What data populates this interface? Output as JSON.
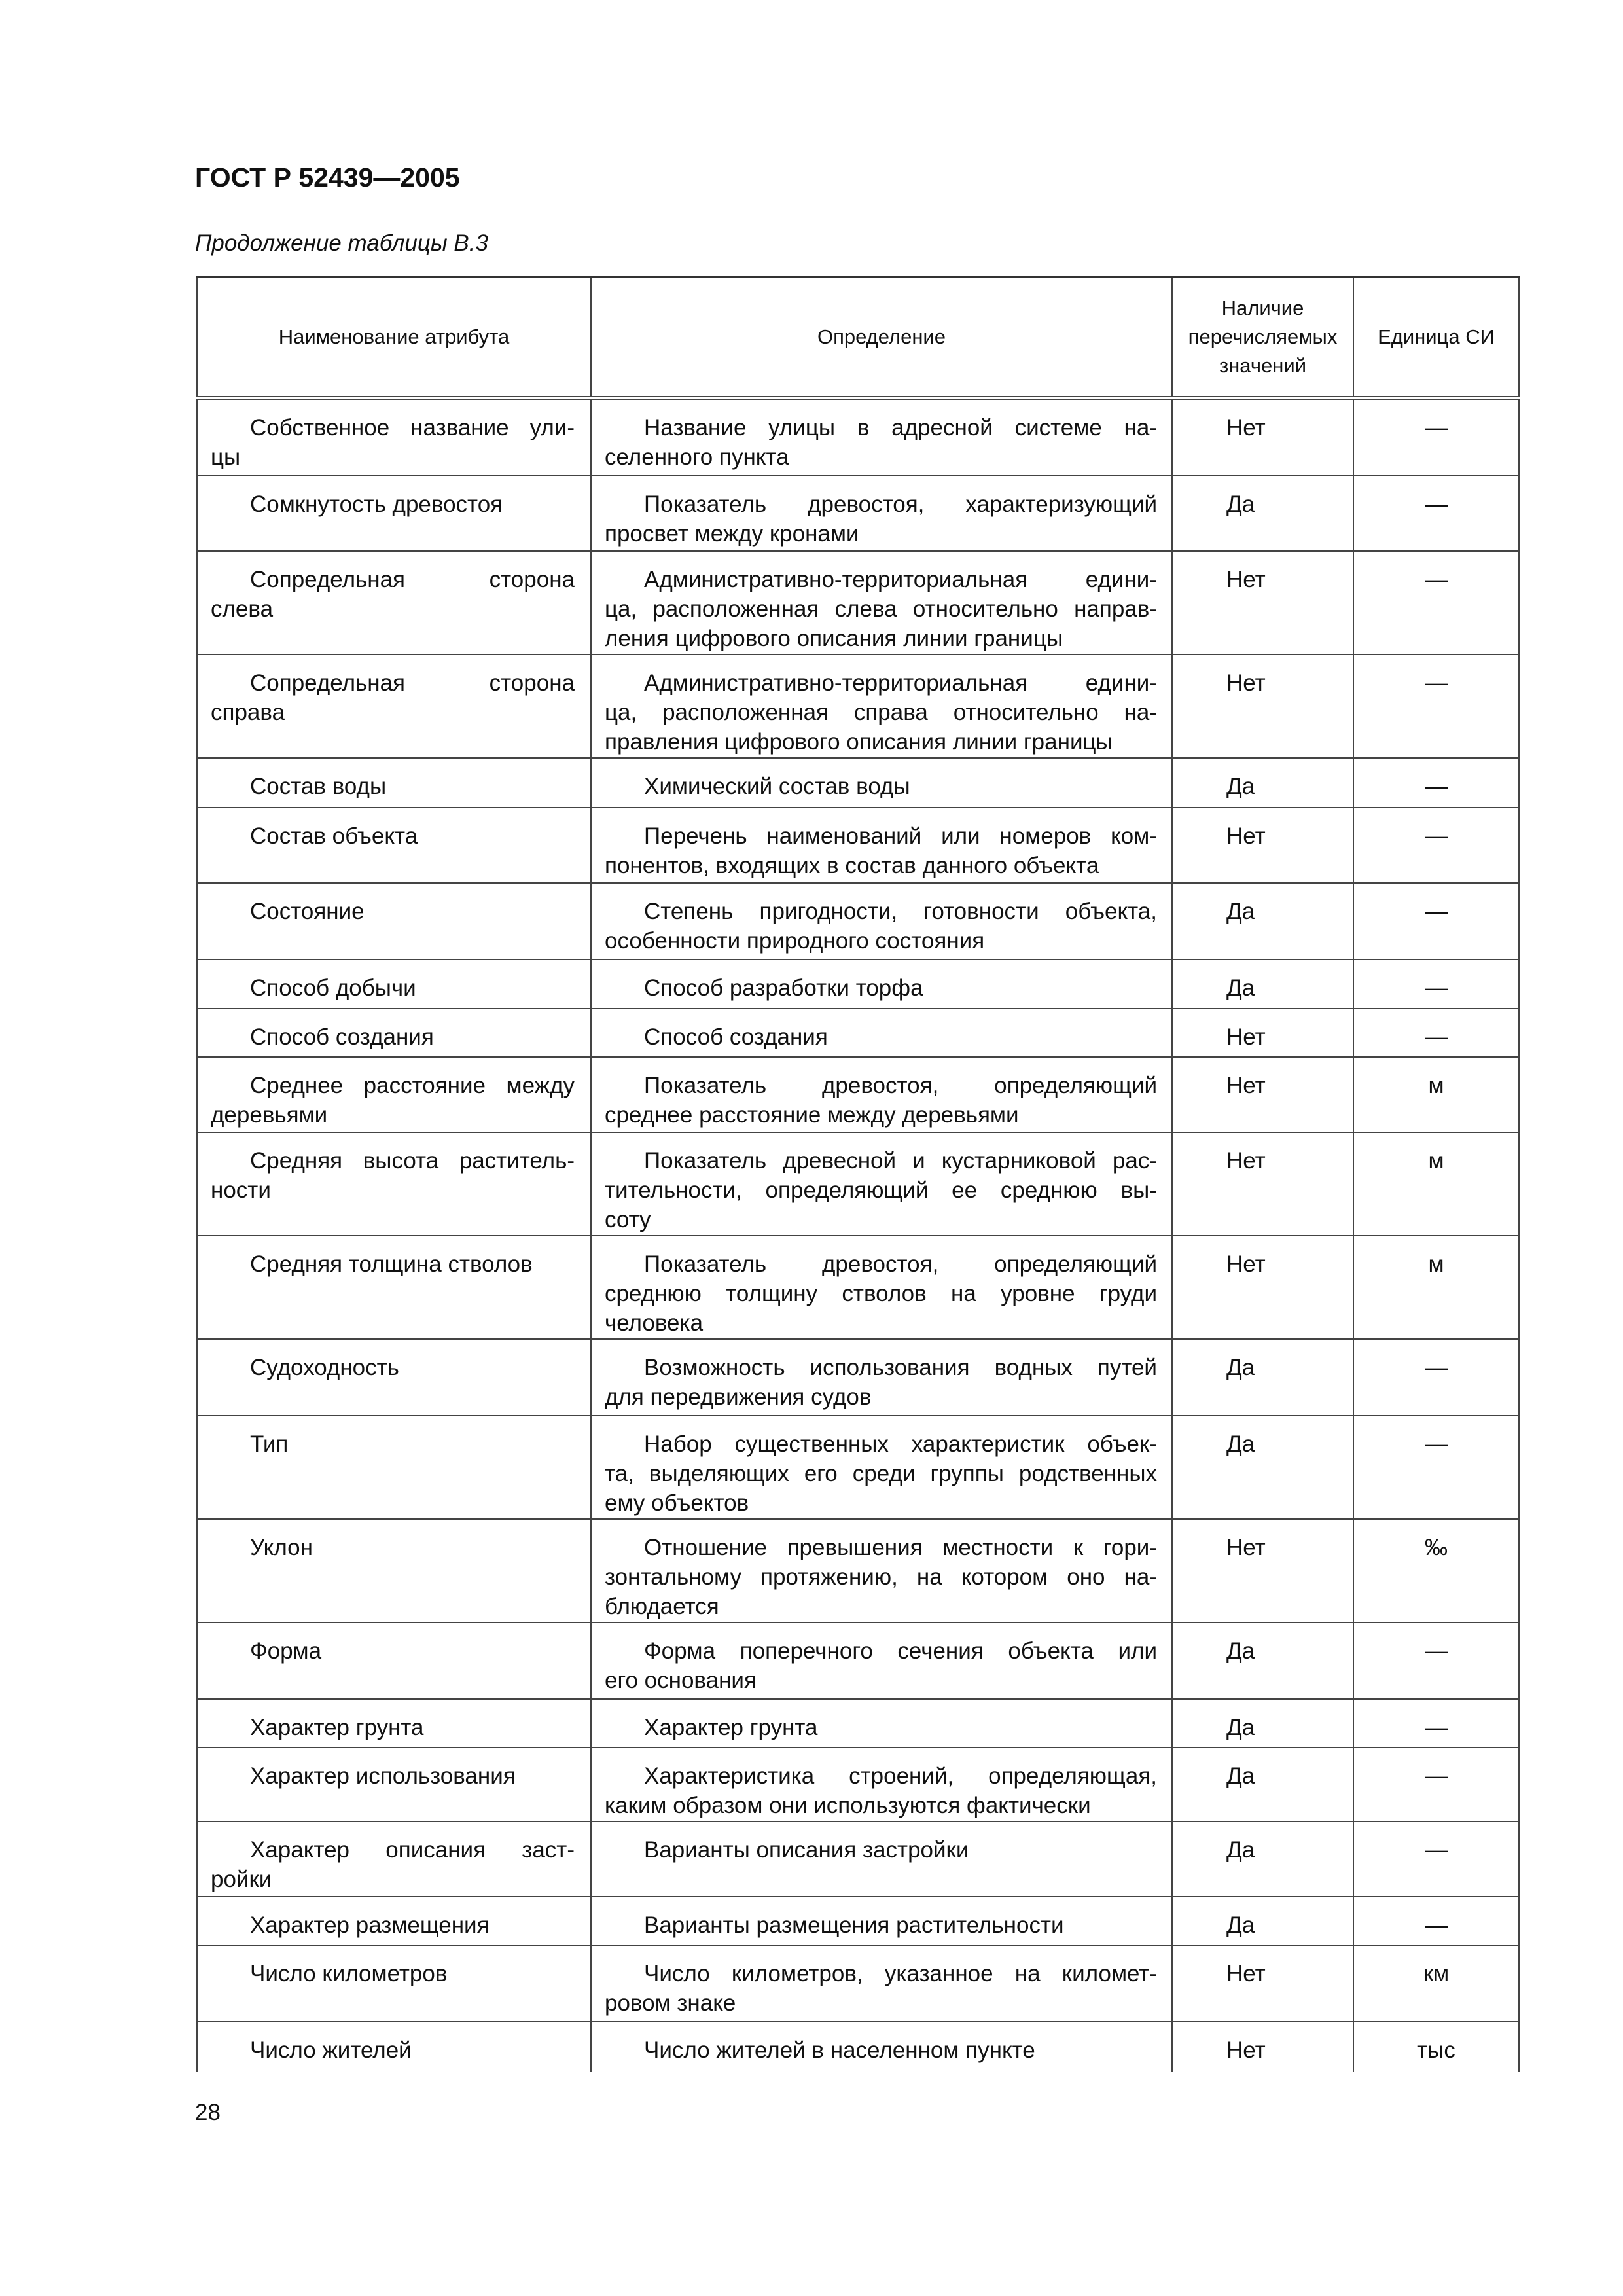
{
  "document": {
    "title": "ГОСТ Р 52439—2005",
    "subtitle": "Продолжение таблицы В.3",
    "page_number": "28"
  },
  "table": {
    "headers": [
      "Наименование атрибута",
      "Определение",
      "Наличие перечисляемых значений",
      "Единица СИ"
    ],
    "rows": [
      {
        "name": [
          "Собственное название ули-",
          "цы"
        ],
        "definition": [
          "Название улицы в адресной системе на-",
          "селенного пункта"
        ],
        "enumerated": "Нет",
        "unit": "—"
      },
      {
        "name": [
          "Сомкнутость древостоя"
        ],
        "definition": [
          "Показатель древостоя, характеризующий",
          "просвет между кронами"
        ],
        "enumerated": "Да",
        "unit": "—"
      },
      {
        "name": [
          "Сопредельная сторона",
          "слева"
        ],
        "definition": [
          "Административно-территориальная едини-",
          "ца, расположенная слева относительно направ-",
          "ления цифрового описания линии границы"
        ],
        "enumerated": "Нет",
        "unit": "—"
      },
      {
        "name": [
          "Сопредельная сторона",
          "справа"
        ],
        "definition": [
          "Административно-территориальная едини-",
          "ца, расположенная справа относительно на-",
          "правления цифрового описания линии границы"
        ],
        "enumerated": "Нет",
        "unit": "—"
      },
      {
        "name": [
          "Состав воды"
        ],
        "definition": [
          "Химический состав воды"
        ],
        "enumerated": "Да",
        "unit": "—"
      },
      {
        "name": [
          "Состав объекта"
        ],
        "definition": [
          "Перечень наименований или номеров ком-",
          "понентов, входящих в состав данного объекта"
        ],
        "enumerated": "Нет",
        "unit": "—"
      },
      {
        "name": [
          "Состояние"
        ],
        "definition": [
          "Степень пригодности, готовности объекта,",
          "особенности природного состояния"
        ],
        "enumerated": "Да",
        "unit": "—"
      },
      {
        "name": [
          "Способ добычи"
        ],
        "definition": [
          "Способ разработки торфа"
        ],
        "enumerated": "Да",
        "unit": "—"
      },
      {
        "name": [
          "Способ создания"
        ],
        "definition": [
          "Способ создания"
        ],
        "enumerated": "Нет",
        "unit": "—"
      },
      {
        "name": [
          "Среднее расстояние между",
          "деревьями"
        ],
        "definition": [
          "Показатель древостоя, определяющий",
          "среднее расстояние между деревьями"
        ],
        "enumerated": "Нет",
        "unit": "м"
      },
      {
        "name": [
          "Средняя высота раститель-",
          "ности"
        ],
        "definition": [
          "Показатель древесной и кустарниковой рас-",
          "тительности, определяющий ее среднюю вы-",
          "соту"
        ],
        "enumerated": "Нет",
        "unit": "м"
      },
      {
        "name": [
          "Средняя толщина стволов"
        ],
        "definition": [
          "Показатель древостоя, определяющий",
          "среднюю толщину стволов на уровне груди",
          "человека"
        ],
        "enumerated": "Нет",
        "unit": "м"
      },
      {
        "name": [
          "Судоходность"
        ],
        "definition": [
          "Возможность использования водных путей",
          "для передвижения судов"
        ],
        "enumerated": "Да",
        "unit": "—"
      },
      {
        "name": [
          "Тип"
        ],
        "definition": [
          "Набор существенных характеристик объек-",
          "та, выделяющих его среди группы родственных",
          "ему объектов"
        ],
        "enumerated": "Да",
        "unit": "—"
      },
      {
        "name": [
          "Уклон"
        ],
        "definition": [
          "Отношение превышения местности к гори-",
          "зонтальному протяжению, на котором оно на-",
          "блюдается"
        ],
        "enumerated": "Нет",
        "unit": "‰"
      },
      {
        "name": [
          "Форма"
        ],
        "definition": [
          "Форма поперечного сечения объекта или",
          "его основания"
        ],
        "enumerated": "Да",
        "unit": "—"
      },
      {
        "name": [
          "Характер грунта"
        ],
        "definition": [
          "Характер грунта"
        ],
        "enumerated": "Да",
        "unit": "—"
      },
      {
        "name": [
          "Характер использования"
        ],
        "definition": [
          "Характеристика строений, определяющая,",
          "каким образом они используются фактически"
        ],
        "enumerated": "Да",
        "unit": "—"
      },
      {
        "name": [
          "Характер описания заст-",
          "ройки"
        ],
        "definition": [
          "Варианты описания застройки"
        ],
        "enumerated": "Да",
        "unit": "—"
      },
      {
        "name": [
          "Характер размещения"
        ],
        "definition": [
          "Варианты размещения растительности"
        ],
        "enumerated": "Да",
        "unit": "—"
      },
      {
        "name": [
          "Число километров"
        ],
        "definition": [
          "Число километров, указанное на километ-",
          "ровом знаке"
        ],
        "enumerated": "Нет",
        "unit": "км"
      },
      {
        "name": [
          "Число жителей"
        ],
        "definition": [
          "Число жителей в населенном пункте"
        ],
        "enumerated": "Нет",
        "unit": "тыс"
      }
    ]
  }
}
